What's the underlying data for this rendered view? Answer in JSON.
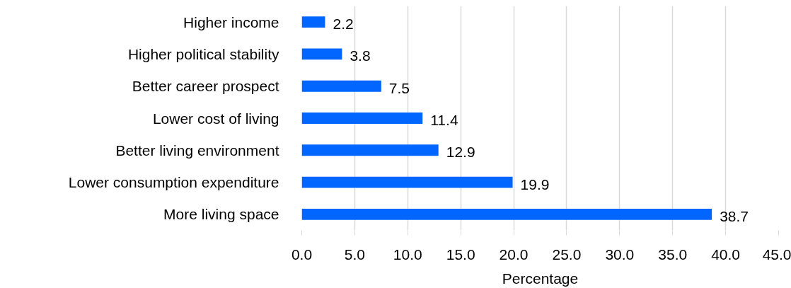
{
  "chart_data": {
    "type": "bar",
    "orientation": "horizontal",
    "categories": [
      "Higher income",
      "Higher political stability",
      "Better career prospect",
      "Lower cost of living",
      "Better living environment",
      "Lower consumption expenditure",
      "More living space"
    ],
    "values": [
      2.2,
      3.8,
      7.5,
      11.4,
      12.9,
      19.9,
      38.7
    ],
    "color": "#0066ff",
    "data_labels": true,
    "xlabel": "Percentage",
    "xlim": [
      0,
      45
    ],
    "xticks": [
      {
        "value": 0,
        "label": "0.0"
      },
      {
        "value": 5,
        "label": "5.0"
      },
      {
        "value": 10,
        "label": "10.0"
      },
      {
        "value": 15,
        "label": "15.0"
      },
      {
        "value": 20,
        "label": "20.0"
      },
      {
        "value": 25,
        "label": "25.0"
      },
      {
        "value": 30,
        "label": "30.0"
      },
      {
        "value": 35,
        "label": "35.0"
      },
      {
        "value": 40,
        "label": "40.0"
      },
      {
        "value": 45,
        "label": "45.0"
      }
    ],
    "grid": "x"
  }
}
